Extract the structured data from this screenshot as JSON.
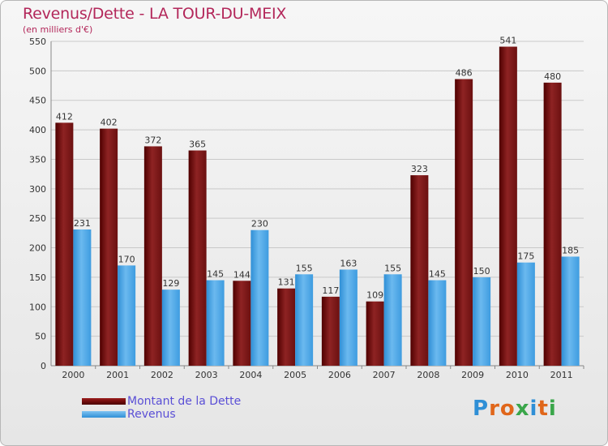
{
  "title": "Revenus/Dette - LA TOUR-DU-MEIX",
  "subtitle": "(en milliers d'€)",
  "legend": {
    "debt": "Montant de la Dette",
    "revenue": "Revenus"
  },
  "logo": {
    "text": "Proxiti",
    "letters": [
      "P",
      "r",
      "o",
      "x",
      "i",
      "t",
      "i"
    ],
    "colors": [
      "#2f8fd6",
      "#e0661a",
      "#e0661a",
      "#3aa64a",
      "#2f8fd6",
      "#e0661a",
      "#3aa64a"
    ]
  },
  "colors": {
    "debt_top": "#8e2323",
    "debt_bottom": "#5c0000",
    "rev_top": "#6bb9ef",
    "rev_bottom": "#2f8fd6",
    "title": "#b3275a"
  },
  "chart_data": {
    "type": "bar",
    "categories": [
      "2000",
      "2001",
      "2002",
      "2003",
      "2004",
      "2005",
      "2006",
      "2007",
      "2008",
      "2009",
      "2010",
      "2011"
    ],
    "series": [
      {
        "name": "Montant de la Dette",
        "values": [
          412,
          402,
          372,
          365,
          144,
          131,
          117,
          109,
          323,
          486,
          541,
          480
        ]
      },
      {
        "name": "Revenus",
        "values": [
          231,
          170,
          129,
          145,
          230,
          155,
          163,
          155,
          145,
          150,
          175,
          185
        ]
      }
    ],
    "ylim": [
      0,
      550
    ],
    "yticks": [
      0,
      50,
      100,
      150,
      200,
      250,
      300,
      350,
      400,
      450,
      500,
      550
    ],
    "grid": true
  }
}
